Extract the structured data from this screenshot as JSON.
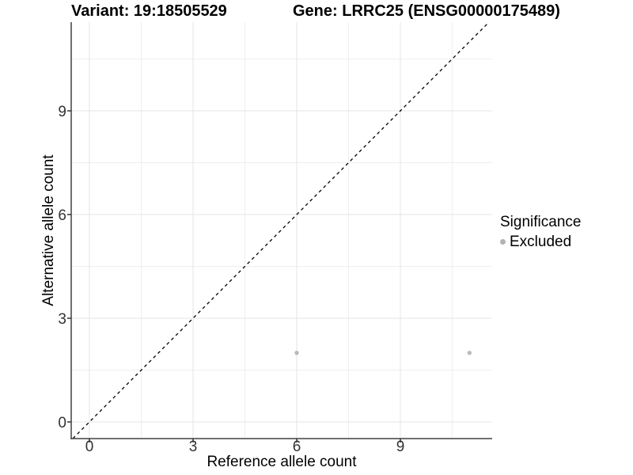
{
  "titles": {
    "variant": "Variant: 19:18505529",
    "gene": "Gene: LRRC25 (ENSG00000175489)"
  },
  "chart_data": {
    "type": "scatter",
    "title_left": "Variant: 19:18505529",
    "title_right": "Gene: LRRC25 (ENSG00000175489)",
    "xlabel": "Reference allele count",
    "ylabel": "Alternative allele count",
    "x_ticks": [
      0,
      3,
      6,
      9
    ],
    "y_ticks": [
      0,
      3,
      6,
      9
    ],
    "x_minor_ticks": [
      1.5,
      4.5,
      7.5,
      10.5
    ],
    "y_minor_ticks": [
      1.5,
      4.5,
      7.5,
      10.5
    ],
    "xlim": [
      -0.53,
      11.66
    ],
    "ylim": [
      -0.48,
      11.56
    ],
    "grid": true,
    "identity_line": {
      "slope": 1,
      "intercept": 0,
      "style": "dashed",
      "color": "#000000"
    },
    "series": [
      {
        "name": "Excluded",
        "color": "#bababa",
        "points": [
          [
            6,
            2
          ],
          [
            11,
            2
          ]
        ]
      }
    ],
    "legend": {
      "title": "Significance",
      "position": "right",
      "entries": [
        {
          "label": "Excluded",
          "color": "#b3b3b3"
        }
      ]
    },
    "style_colors": {
      "axis_line": "#404040",
      "tick_mark": "#333333",
      "tick_label": "#333333",
      "grid_major": "#e4e4e4",
      "grid_minor": "#efefef"
    }
  }
}
